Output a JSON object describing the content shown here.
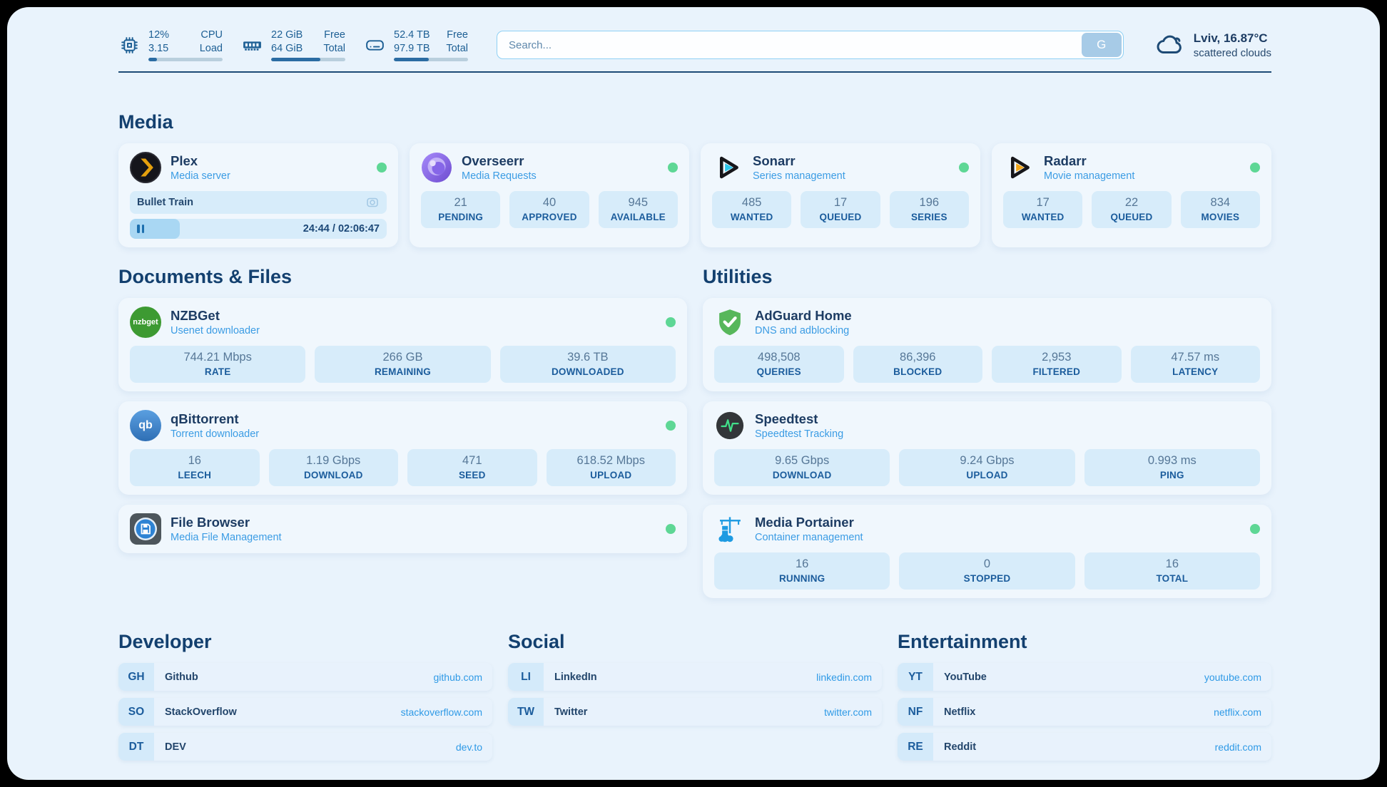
{
  "header": {
    "system_stats": [
      {
        "icon": "cpu-icon",
        "values": [
          "12%",
          "3.15"
        ],
        "labels": [
          "CPU",
          "Load"
        ],
        "progress_pct": 12
      },
      {
        "icon": "ram-icon",
        "values": [
          "22 GiB",
          "64 GiB"
        ],
        "labels": [
          "Free",
          "Total"
        ],
        "progress_pct": 66
      },
      {
        "icon": "disk-icon",
        "values": [
          "52.4 TB",
          "97.9 TB"
        ],
        "labels": [
          "Free",
          "Total"
        ],
        "progress_pct": 47
      }
    ],
    "search": {
      "placeholder": "Search...",
      "button_label": "G"
    },
    "weather": {
      "icon": "cloud-icon",
      "location_temp": "Lviv, 16.87°C",
      "condition": "scattered clouds"
    }
  },
  "media": {
    "title": "Media",
    "services": [
      {
        "name": "Plex",
        "description": "Media server",
        "logo": "plex-icon",
        "online": true,
        "now_playing": {
          "title": "Bullet Train",
          "time": "24:44 / 02:06:47",
          "progress_pct": 19.5
        }
      },
      {
        "name": "Overseerr",
        "description": "Media Requests",
        "logo": "overseerr-icon",
        "online": true,
        "stats": [
          {
            "value": "21",
            "label": "PENDING"
          },
          {
            "value": "40",
            "label": "APPROVED"
          },
          {
            "value": "945",
            "label": "AVAILABLE"
          }
        ]
      },
      {
        "name": "Sonarr",
        "description": "Series management",
        "logo": "sonarr-icon",
        "online": true,
        "stats": [
          {
            "value": "485",
            "label": "WANTED"
          },
          {
            "value": "17",
            "label": "QUEUED"
          },
          {
            "value": "196",
            "label": "SERIES"
          }
        ]
      },
      {
        "name": "Radarr",
        "description": "Movie management",
        "logo": "radarr-icon",
        "online": true,
        "stats": [
          {
            "value": "17",
            "label": "WANTED"
          },
          {
            "value": "22",
            "label": "QUEUED"
          },
          {
            "value": "834",
            "label": "MOVIES"
          }
        ]
      }
    ]
  },
  "documents": {
    "title": "Documents & Files",
    "services": [
      {
        "name": "NZBGet",
        "description": "Usenet downloader",
        "logo": "nzbget-icon",
        "logo_text": "nzbget",
        "online": true,
        "stats": [
          {
            "value": "744.21 Mbps",
            "label": "RATE"
          },
          {
            "value": "266 GB",
            "label": "REMAINING"
          },
          {
            "value": "39.6 TB",
            "label": "DOWNLOADED"
          }
        ]
      },
      {
        "name": "qBittorrent",
        "description": "Torrent downloader",
        "logo": "qbittorrent-icon",
        "logo_text": "qb",
        "online": true,
        "stats": [
          {
            "value": "16",
            "label": "LEECH"
          },
          {
            "value": "1.19 Gbps",
            "label": "DOWNLOAD"
          },
          {
            "value": "471",
            "label": "SEED"
          },
          {
            "value": "618.52 Mbps",
            "label": "UPLOAD"
          }
        ]
      },
      {
        "name": "File Browser",
        "description": "Media File Management",
        "logo": "filebrowser-icon",
        "online": true
      }
    ]
  },
  "utilities": {
    "title": "Utilities",
    "services": [
      {
        "name": "AdGuard Home",
        "description": "DNS and adblocking",
        "logo": "adguard-icon",
        "stats": [
          {
            "value": "498,508",
            "label": "QUERIES"
          },
          {
            "value": "86,396",
            "label": "BLOCKED"
          },
          {
            "value": "2,953",
            "label": "FILTERED"
          },
          {
            "value": "47.57 ms",
            "label": "LATENCY"
          }
        ]
      },
      {
        "name": "Speedtest",
        "description": "Speedtest Tracking",
        "logo": "speedtest-icon",
        "stats": [
          {
            "value": "9.65 Gbps",
            "label": "DOWNLOAD"
          },
          {
            "value": "9.24 Gbps",
            "label": "UPLOAD"
          },
          {
            "value": "0.993 ms",
            "label": "PING"
          }
        ]
      },
      {
        "name": "Media Portainer",
        "description": "Container management",
        "logo": "portainer-icon",
        "online": true,
        "stats": [
          {
            "value": "16",
            "label": "RUNNING"
          },
          {
            "value": "0",
            "label": "STOPPED"
          },
          {
            "value": "16",
            "label": "TOTAL"
          }
        ]
      }
    ]
  },
  "bookmarks": {
    "groups": [
      {
        "title": "Developer",
        "items": [
          {
            "abbr": "GH",
            "name": "Github",
            "url": "github.com"
          },
          {
            "abbr": "SO",
            "name": "StackOverflow",
            "url": "stackoverflow.com"
          },
          {
            "abbr": "DT",
            "name": "DEV",
            "url": "dev.to"
          }
        ]
      },
      {
        "title": "Social",
        "items": [
          {
            "abbr": "LI",
            "name": "LinkedIn",
            "url": "linkedin.com"
          },
          {
            "abbr": "TW",
            "name": "Twitter",
            "url": "twitter.com"
          }
        ]
      },
      {
        "title": "Entertainment",
        "items": [
          {
            "abbr": "YT",
            "name": "YouTube",
            "url": "youtube.com"
          },
          {
            "abbr": "NF",
            "name": "Netflix",
            "url": "netflix.com"
          },
          {
            "abbr": "RE",
            "name": "Reddit",
            "url": "reddit.com"
          }
        ]
      }
    ]
  },
  "colors": {
    "page_bg": "#e9f3fc",
    "card_bg": "#f0f7fd",
    "stat_bg": "#d7ecfa",
    "navy_text": "#1d3c63",
    "subtitle_blue": "#3b9ce4",
    "link_blue": "#2f9ae6",
    "online_green": "#5ed795",
    "header_text": "#1d5f94",
    "progress_fill": "#2b6ca3"
  }
}
